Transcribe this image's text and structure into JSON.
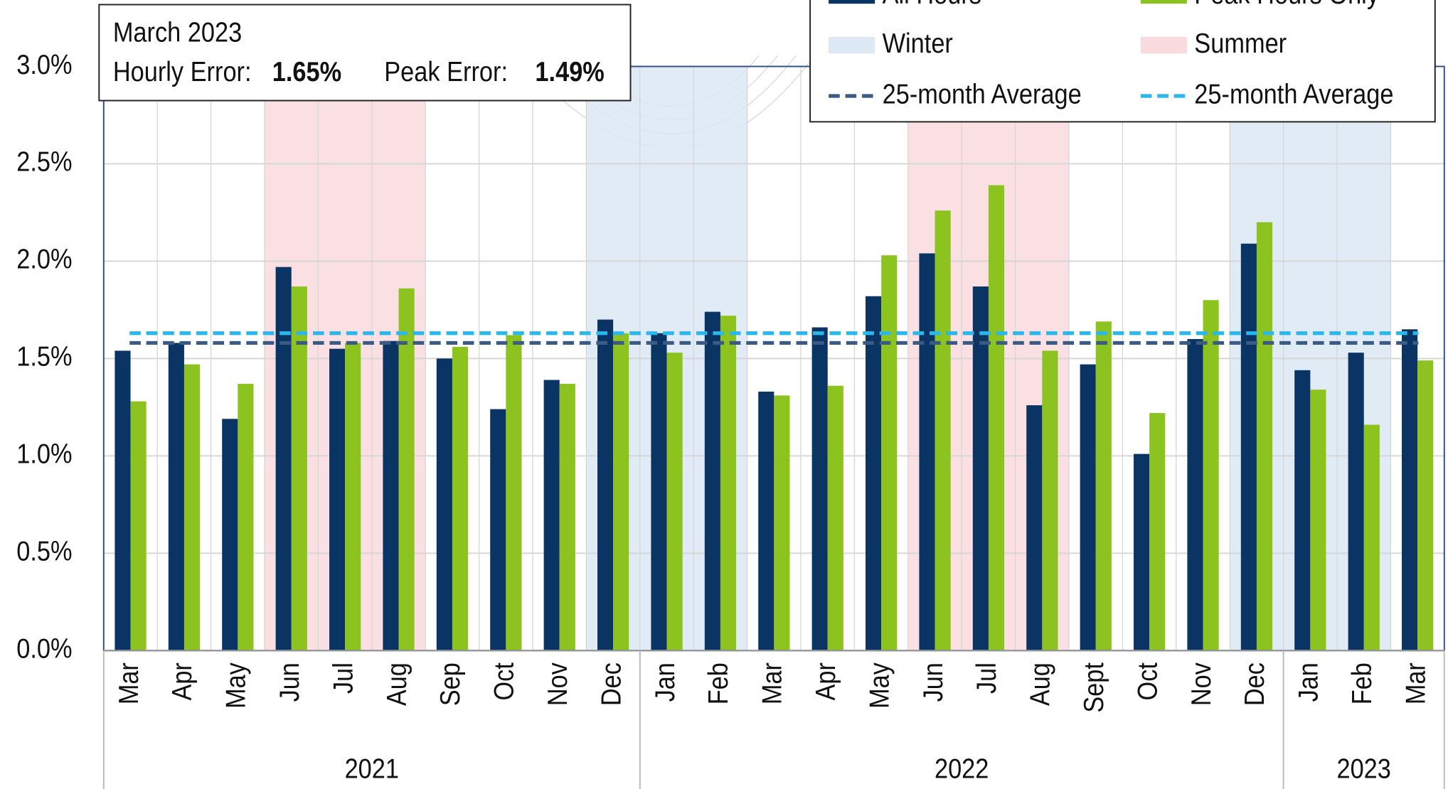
{
  "chart_data": {
    "type": "bar",
    "annotation": {
      "title": "March 2023",
      "items": [
        {
          "label": "Hourly Error:",
          "value": "1.65%"
        },
        {
          "label": "Peak Error:",
          "value": "1.49%"
        }
      ]
    },
    "groups": [
      {
        "label": "2021",
        "categories": [
          "Mar",
          "Apr",
          "May",
          "Jun",
          "Jul",
          "Aug",
          "Sep",
          "Oct",
          "Nov",
          "Dec"
        ]
      },
      {
        "label": "2022",
        "categories": [
          "Jan",
          "Feb",
          "Mar",
          "Apr",
          "May",
          "Jun",
          "Jul",
          "Aug",
          "Sept",
          "Oct",
          "Nov",
          "Dec"
        ]
      },
      {
        "label": "2023",
        "categories": [
          "Jan",
          "Feb",
          "Mar"
        ]
      }
    ],
    "seasons": [
      {
        "name": "Winter",
        "color": "#dce8f4"
      },
      {
        "name": "Summer",
        "color": "#f9dbde"
      }
    ],
    "category_seasons": [
      null,
      null,
      null,
      "Summer",
      "Summer",
      "Summer",
      null,
      null,
      null,
      "Winter",
      "Winter",
      "Winter",
      null,
      null,
      null,
      "Summer",
      "Summer",
      "Summer",
      null,
      null,
      null,
      "Winter",
      "Winter",
      "Winter",
      null
    ],
    "series": [
      {
        "name": "All Hours",
        "color": "#0a3464",
        "values": [
          1.54,
          1.58,
          1.19,
          1.97,
          1.55,
          1.59,
          1.5,
          1.24,
          1.39,
          1.7,
          1.63,
          1.74,
          1.33,
          1.66,
          1.82,
          2.04,
          1.87,
          1.26,
          1.47,
          1.01,
          1.6,
          2.09,
          1.44,
          1.53,
          1.65
        ],
        "average": {
          "name": "25-month Average",
          "value": 1.58,
          "color": "#3b5b84"
        }
      },
      {
        "name": "Peak Hours Only",
        "color": "#8cc31e",
        "values": [
          1.28,
          1.47,
          1.37,
          1.87,
          1.58,
          1.86,
          1.56,
          1.62,
          1.37,
          1.63,
          1.53,
          1.72,
          1.31,
          1.36,
          2.03,
          2.26,
          2.39,
          1.54,
          1.69,
          1.22,
          1.8,
          2.2,
          1.34,
          1.16,
          1.49
        ],
        "average": {
          "name": "25-month Average",
          "value": 1.63,
          "color": "#2ab8ec"
        }
      }
    ],
    "ylim": [
      0,
      3
    ],
    "yticks": [
      {
        "value": 0,
        "label": "0.0%"
      },
      {
        "value": 0.5,
        "label": "0.5%"
      },
      {
        "value": 1,
        "label": "1.0%"
      },
      {
        "value": 1.5,
        "label": "1.5%"
      },
      {
        "value": 2,
        "label": "2.0%"
      },
      {
        "value": 2.5,
        "label": "2.5%"
      },
      {
        "value": 3,
        "label": "3.0%"
      }
    ],
    "grid": true
  }
}
